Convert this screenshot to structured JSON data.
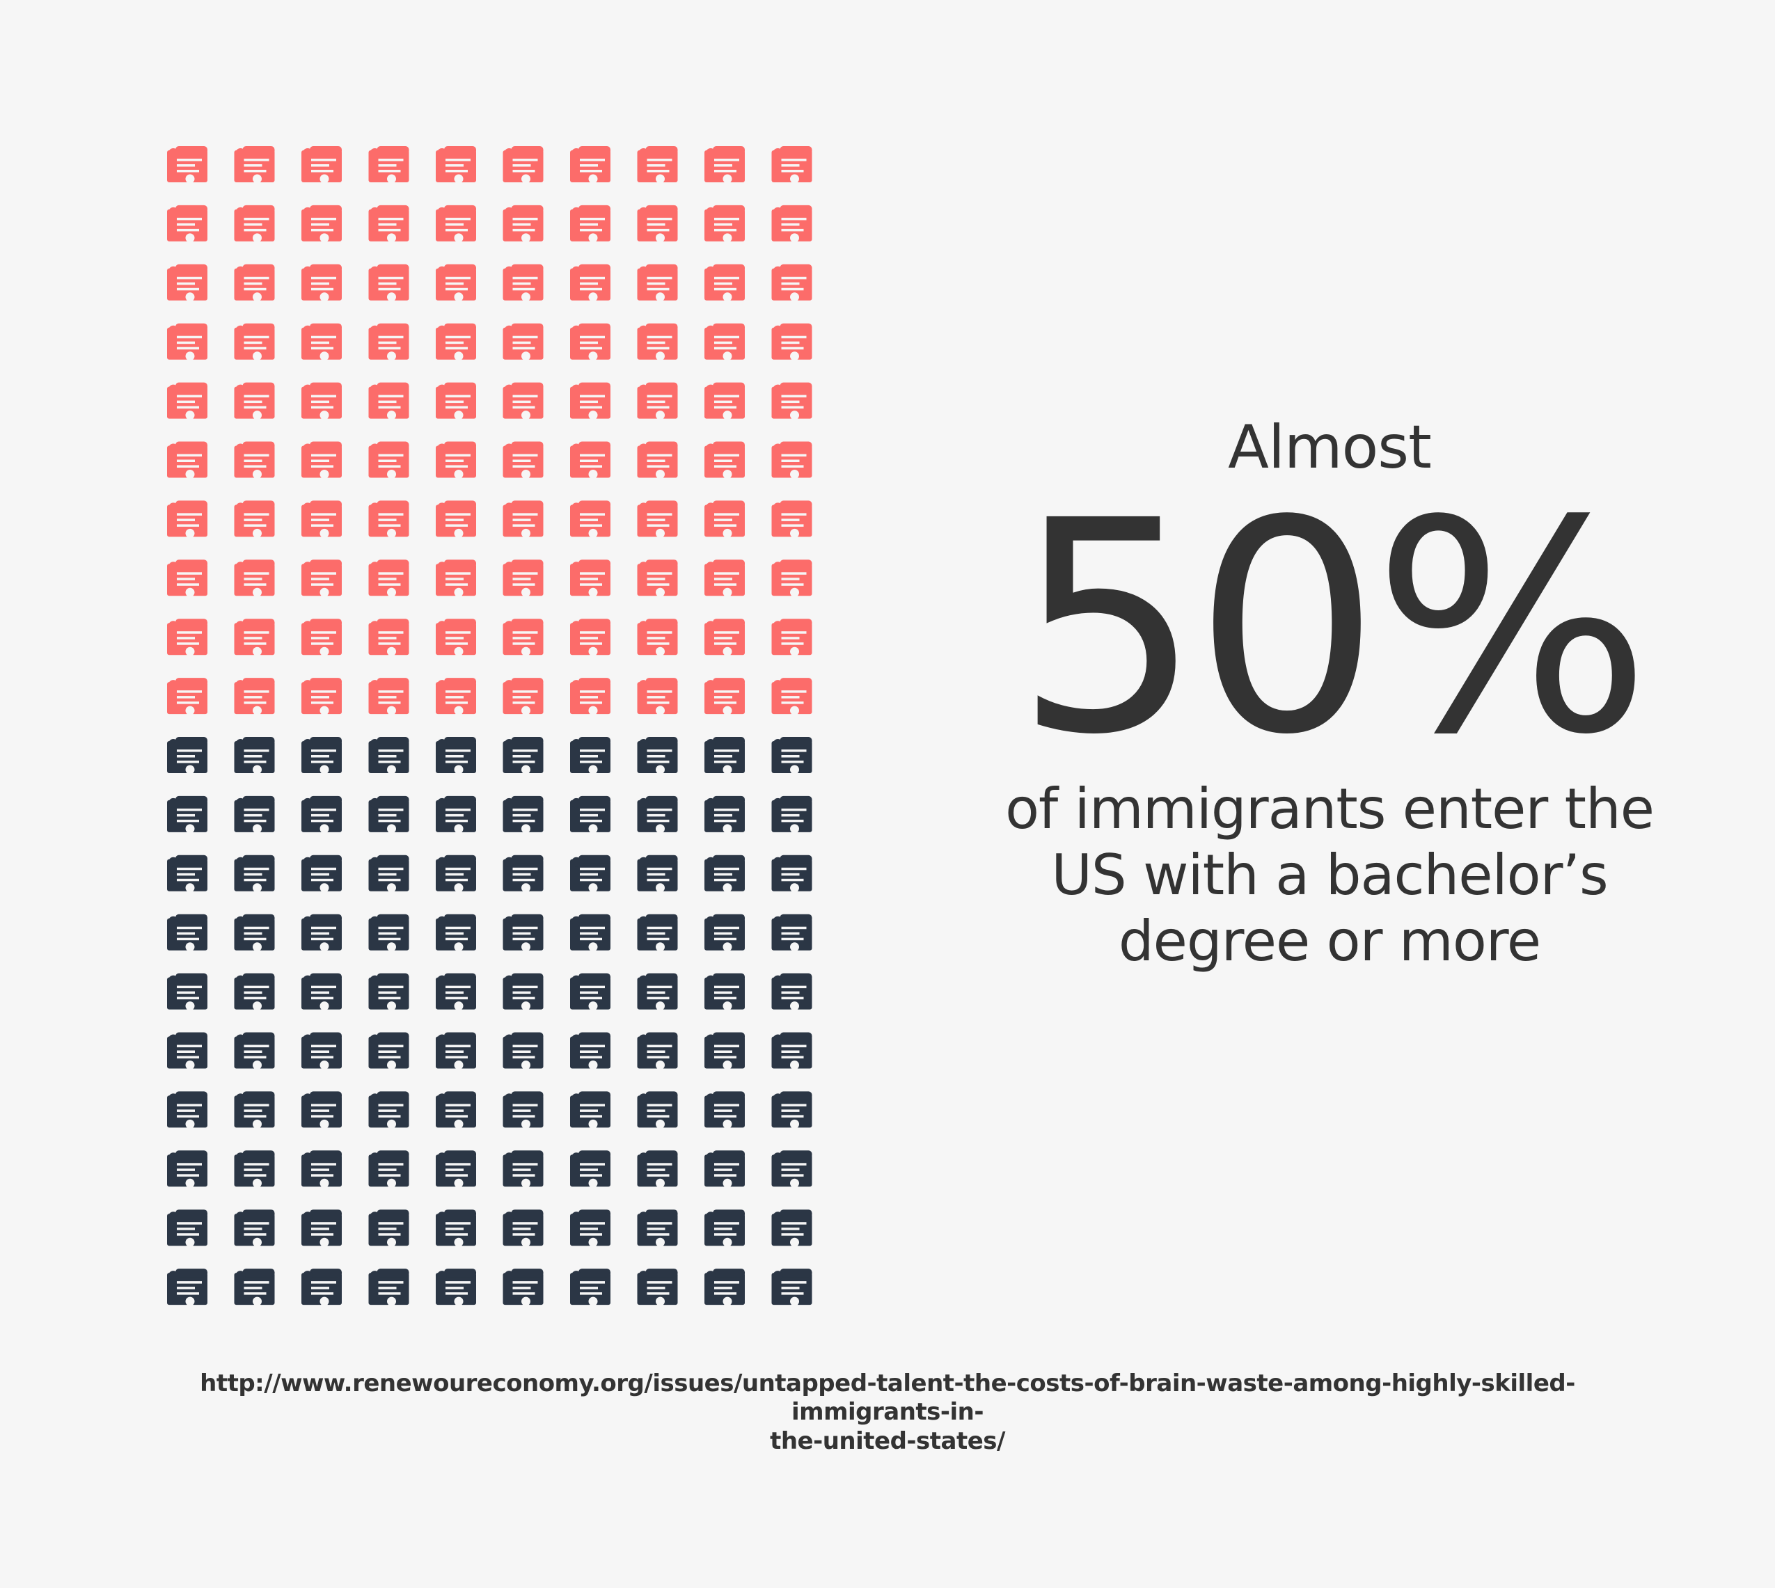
{
  "colors": {
    "background": "#f6f6f6",
    "highlight": "#fc6c6a",
    "base": "#2b3645",
    "text": "#333333"
  },
  "icon": {
    "name": "diploma-certificate-icon"
  },
  "chart_data": {
    "type": "waffle",
    "rows": 20,
    "columns": 10,
    "total": 200,
    "highlighted_count": 100,
    "highlighted_share": 0.5,
    "highlighted_color": "#fc6c6a",
    "rest_color": "#2b3645"
  },
  "stat": {
    "lead": "Almost",
    "value": "50%",
    "subtitle": "of immigrants enter the\nUS with a bachelor’s\ndegree or more"
  },
  "source": {
    "text": "http://www.renewoureconomy.org/issues/untapped-talent-the-costs-of-brain-waste-among-highly-skilled-immigrants-in-\nthe-united-states/"
  }
}
